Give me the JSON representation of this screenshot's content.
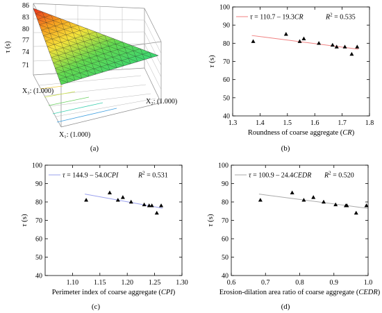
{
  "panel_labels": [
    "(a)",
    "(b)",
    "(c)",
    "(d)"
  ],
  "chart_data": [
    {
      "panel": "(a)",
      "type": "surface3d",
      "zlabel": "τ (s)",
      "z_ticks": [
        "86",
        "83",
        "80",
        "77",
        "74",
        "71"
      ],
      "axis_labels": [
        "X₃: (1.000)",
        "X₂: (1.000)",
        "X₁: (1.000)"
      ],
      "colors": {
        "high": "#e8301c",
        "mid": "#f5e23a",
        "low": "#1ed28a",
        "frame": "#888888"
      }
    },
    {
      "panel": "(b)",
      "type": "scatter",
      "xlabel_text": "Roundness of coarse aggregate (",
      "xlabel_var": "CR",
      "xlabel_end": ")",
      "ylabel_var": "τ",
      "ylabel_unit": " (s)",
      "xlim": [
        1.3,
        1.8
      ],
      "ylim": [
        40,
        100
      ],
      "xticks": [
        "1.3",
        "1.4",
        "1.5",
        "1.6",
        "1.7",
        "1.8"
      ],
      "yticks": [
        "40",
        "50",
        "60",
        "70",
        "80",
        "90",
        "100"
      ],
      "x": [
        1.375,
        1.495,
        1.545,
        1.56,
        1.615,
        1.665,
        1.68,
        1.71,
        1.735,
        1.755
      ],
      "y": [
        81,
        85,
        81,
        82.5,
        80,
        79,
        78,
        78,
        74,
        78
      ],
      "fit": {
        "intercept": 110.7,
        "slope": -19.3
      },
      "equation_lhs": "τ",
      "equation_rhs": " = 110.7 – 19.3",
      "equation_var": "CR",
      "r2_label": "R",
      "r2_exp": "2",
      "r2_value": " = 0.535",
      "line_color": "#f08080"
    },
    {
      "panel": "(c)",
      "type": "scatter",
      "xlabel_text": "Perimeter index of coarse aggregate (",
      "xlabel_var": "CPI",
      "xlabel_end": ")",
      "ylabel_var": "τ",
      "ylabel_unit": " (s)",
      "xlim": [
        1.05,
        1.3
      ],
      "ylim": [
        40,
        100
      ],
      "xticks": [
        "1.10",
        "1.15",
        "1.20",
        "1.25",
        "1.30"
      ],
      "yticks": [
        "40",
        "50",
        "60",
        "70",
        "80",
        "90",
        "100"
      ],
      "x": [
        1.125,
        1.168,
        1.183,
        1.192,
        1.207,
        1.231,
        1.24,
        1.245,
        1.254,
        1.262
      ],
      "y": [
        81,
        85,
        81,
        82.5,
        80,
        78.5,
        78,
        78,
        74,
        78
      ],
      "fit": {
        "intercept": 144.9,
        "slope": -54.0
      },
      "equation_lhs": "τ",
      "equation_rhs": " = 144.9 – 54.0",
      "equation_var": "CPI",
      "r2_label": "R",
      "r2_exp": "2",
      "r2_value": " = 0.531",
      "line_color": "#9aa0ee"
    },
    {
      "panel": "(d)",
      "type": "scatter",
      "xlabel_text": "Erosion-dilation area ratio of coarse aggregate (",
      "xlabel_var": "CEDR",
      "xlabel_end": ")",
      "ylabel_var": "τ",
      "ylabel_unit": " (s)",
      "xlim": [
        0.6,
        1.0
      ],
      "ylim": [
        40,
        100
      ],
      "xticks": [
        "0.6",
        "0.7",
        "0.8",
        "0.9",
        "1.0"
      ],
      "yticks": [
        "40",
        "50",
        "60",
        "70",
        "80",
        "90",
        "100"
      ],
      "x": [
        0.685,
        0.778,
        0.812,
        0.84,
        0.87,
        0.905,
        0.935,
        0.938,
        0.965,
        0.995
      ],
      "y": [
        81,
        85,
        81,
        82.5,
        80,
        78.5,
        78,
        78,
        74,
        78
      ],
      "fit": {
        "intercept": 100.9,
        "slope": -24.4
      },
      "equation_lhs": "τ",
      "equation_rhs": " = 100.9 – 24.4",
      "equation_var": "CEDR",
      "r2_label": "R",
      "r2_exp": "2",
      "r2_value": " = 0.520",
      "line_color": "#aaaaaa"
    }
  ]
}
